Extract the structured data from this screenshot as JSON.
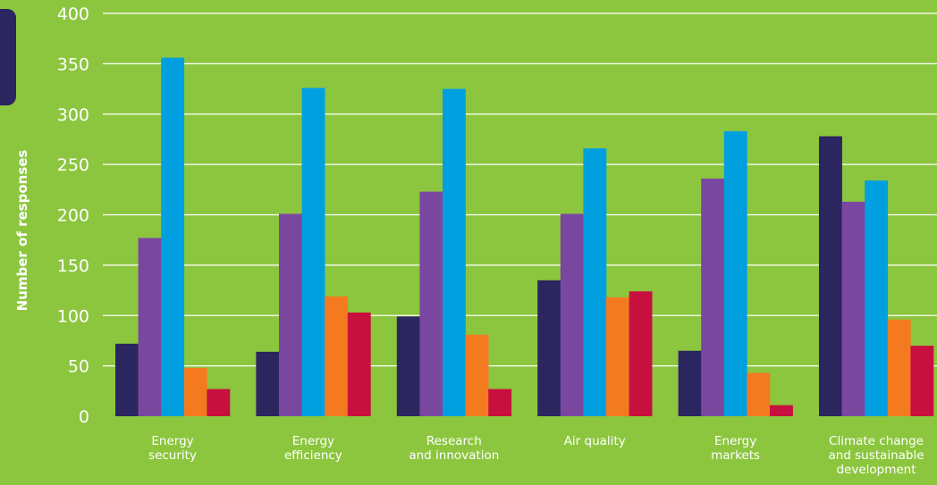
{
  "chart_data": {
    "type": "bar",
    "title": "",
    "xlabel": "",
    "ylabel": "Number of responses",
    "ylim": [
      0,
      400
    ],
    "yticks": [
      0,
      50,
      100,
      150,
      200,
      250,
      300,
      350,
      400
    ],
    "grid": true,
    "categories": [
      [
        "Energy",
        "security"
      ],
      [
        "Energy",
        "efficiency"
      ],
      [
        "Research",
        "and innovation"
      ],
      [
        "Air quality"
      ],
      [
        "Energy",
        "markets"
      ],
      [
        "Climate change",
        "and sustainable",
        "development"
      ]
    ],
    "series": [
      {
        "color": "#2b2560",
        "values": [
          72,
          64,
          99,
          135,
          65,
          278
        ]
      },
      {
        "color": "#7a47a0",
        "values": [
          177,
          201,
          223,
          201,
          236,
          213
        ]
      },
      {
        "color": "#00a0e0",
        "values": [
          356,
          326,
          325,
          266,
          283,
          234
        ]
      },
      {
        "color": "#f47a20",
        "values": [
          48,
          119,
          81,
          118,
          43,
          96
        ]
      },
      {
        "color": "#c8103e",
        "values": [
          27,
          103,
          27,
          124,
          11,
          70
        ]
      }
    ]
  }
}
